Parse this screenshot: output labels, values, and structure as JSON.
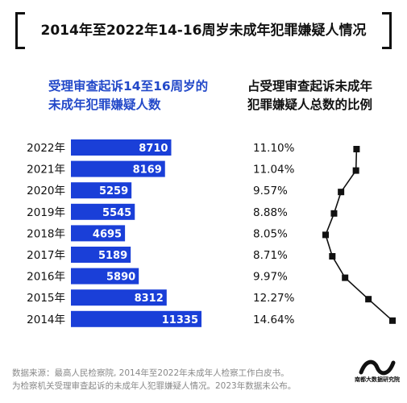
{
  "title": "2014年至2022年14-16周岁未成年犯罪嫌疑人情况",
  "left_header": [
    "受理审查起诉14至16周岁的",
    "未成年犯罪嫌疑人数"
  ],
  "right_header": [
    "占受理审查起诉未成年",
    "犯罪嫌疑人总数的比例"
  ],
  "source_lines": [
    "数据来源：最高人民检察院, 2014年至2022年未成年人检察工作白皮书。",
    "为检察机关受理审查起诉的未成年人犯罪嫌疑人情况。2023年数据未公布。"
  ],
  "logo_text": "南都大数据研究院",
  "colors": {
    "bar": "#1a3fd8",
    "header_blue": "#2349c9",
    "line": "#111111"
  },
  "chart_data": [
    {
      "type": "bar",
      "orientation": "horizontal",
      "categories": [
        "2022年",
        "2021年",
        "2020年",
        "2019年",
        "2018年",
        "2017年",
        "2016年",
        "2015年",
        "2014年"
      ],
      "values": [
        8710,
        8169,
        5259,
        5545,
        4695,
        5189,
        5890,
        8312,
        11335
      ],
      "value_labels": [
        "8710",
        "8169",
        "5259",
        "5545",
        "4695",
        "5189",
        "5890",
        "8312",
        "11335"
      ]
    },
    {
      "type": "line",
      "orientation": "vertical",
      "categories": [
        "2022年",
        "2021年",
        "2020年",
        "2019年",
        "2018年",
        "2017年",
        "2016年",
        "2015年",
        "2014年"
      ],
      "values": [
        11.1,
        11.04,
        9.57,
        8.88,
        8.05,
        8.71,
        9.97,
        12.27,
        14.64
      ],
      "value_labels": [
        "11.10%",
        "11.04%",
        "9.57%",
        "8.88%",
        "8.05%",
        "8.71%",
        "9.97%",
        "12.27%",
        "14.64%"
      ]
    }
  ]
}
